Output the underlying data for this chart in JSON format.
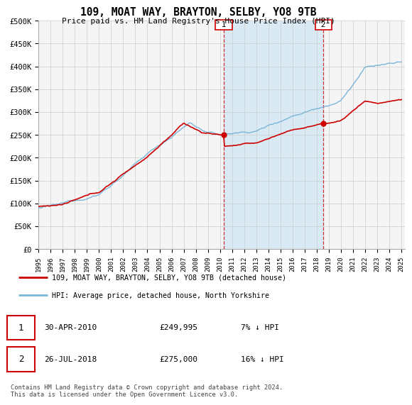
{
  "title": "109, MOAT WAY, BRAYTON, SELBY, YO8 9TB",
  "subtitle": "Price paid vs. HM Land Registry's House Price Index (HPI)",
  "ylabel_ticks": [
    "£0",
    "£50K",
    "£100K",
    "£150K",
    "£200K",
    "£250K",
    "£300K",
    "£350K",
    "£400K",
    "£450K",
    "£500K"
  ],
  "ytick_values": [
    0,
    50000,
    100000,
    150000,
    200000,
    250000,
    300000,
    350000,
    400000,
    450000,
    500000
  ],
  "x_start_year": 1995,
  "x_end_year": 2025,
  "sale1_date": 2010.33,
  "sale1_price": 249995,
  "sale1_label": "1",
  "sale2_date": 2018.56,
  "sale2_price": 275000,
  "sale2_label": "2",
  "hpi_color": "#7ab5d8",
  "price_color": "#cc0000",
  "vline_color": "#cc0000",
  "shade_color": "#daeaf5",
  "background_color": "#ffffff",
  "grid_color": "#cccccc",
  "legend_label_price": "109, MOAT WAY, BRAYTON, SELBY, YO8 9TB (detached house)",
  "legend_label_hpi": "HPI: Average price, detached house, North Yorkshire",
  "table_row1": [
    "1",
    "30-APR-2010",
    "£249,995",
    "7% ↓ HPI"
  ],
  "table_row2": [
    "2",
    "26-JUL-2018",
    "£275,000",
    "16% ↓ HPI"
  ],
  "footnote": "Contains HM Land Registry data © Crown copyright and database right 2024.\nThis data is licensed under the Open Government Licence v3.0."
}
